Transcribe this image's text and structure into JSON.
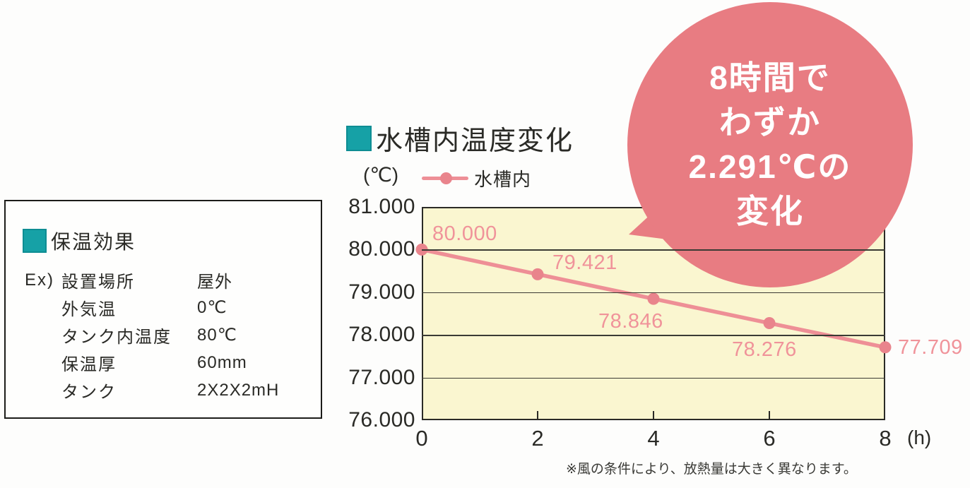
{
  "colors": {
    "accent_teal": "#16a1a6",
    "badge_pink": "#e87c82",
    "line_pink": "#ee8f96",
    "marker_pink": "#e9848c",
    "data_label_pink": "#f0939a",
    "plot_background": "#faf6d0",
    "text_dark": "#2a2a26"
  },
  "info_panel": {
    "title": "保温効果",
    "rows": [
      {
        "prefix": "Ex)",
        "label": "設置場所",
        "value": "屋外"
      },
      {
        "prefix": "",
        "label": "外気温",
        "value": "0℃"
      },
      {
        "prefix": "",
        "label": "タンク内温度",
        "value": "80℃"
      },
      {
        "prefix": "",
        "label": "保温厚",
        "value": "60mm"
      },
      {
        "prefix": "",
        "label": "タンク",
        "value": "2X2X2mH"
      }
    ]
  },
  "chart": {
    "title": "水槽内温度変化",
    "y_unit": "(℃)",
    "x_unit": "(h)",
    "legend_label": "水槽内",
    "footnote": "※風の条件により、放熱量は大きく異なります。"
  },
  "badge": {
    "lines": [
      "8時間で",
      "わずか",
      "2.291℃の",
      "変化"
    ]
  },
  "chart_data": {
    "type": "line",
    "title": "水槽内温度変化",
    "x": [
      0,
      2,
      4,
      6,
      8
    ],
    "series": [
      {
        "name": "水槽内",
        "values": [
          80.0,
          79.421,
          78.846,
          78.276,
          77.709
        ]
      }
    ],
    "point_labels": [
      "80.000",
      "79.421",
      "78.846",
      "78.276",
      "77.709"
    ],
    "xlabel": "(h)",
    "ylabel": "(℃)",
    "xlim": [
      0,
      8
    ],
    "ylim": [
      76,
      81
    ],
    "yticks": [
      81,
      80,
      79,
      78,
      77,
      76
    ],
    "ytick_labels": [
      "81.000",
      "80.000",
      "79.000",
      "78.000",
      "77.000",
      "76.000"
    ],
    "xticks": [
      0,
      2,
      4,
      6,
      8
    ],
    "xtick_labels": [
      "0",
      "2",
      "4",
      "6",
      "8"
    ],
    "grid": "horizontal",
    "legend_position": "top-left-above-plot",
    "annotation": "8時間でわずか2.291℃の変化"
  }
}
